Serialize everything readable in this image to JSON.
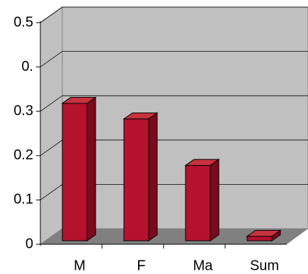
{
  "chart_data": {
    "type": "bar",
    "categories": [
      "M",
      "F",
      "Ma",
      "Sum"
    ],
    "values": [
      0.31,
      0.275,
      0.17,
      0.01
    ],
    "color": "#b5122e",
    "ylim": [
      0,
      0.5
    ],
    "yticks": [
      0,
      0.1,
      0.2,
      0.3,
      {
        "value": 0.4,
        "label": "0."
      },
      0.5
    ],
    "grid": true
  }
}
